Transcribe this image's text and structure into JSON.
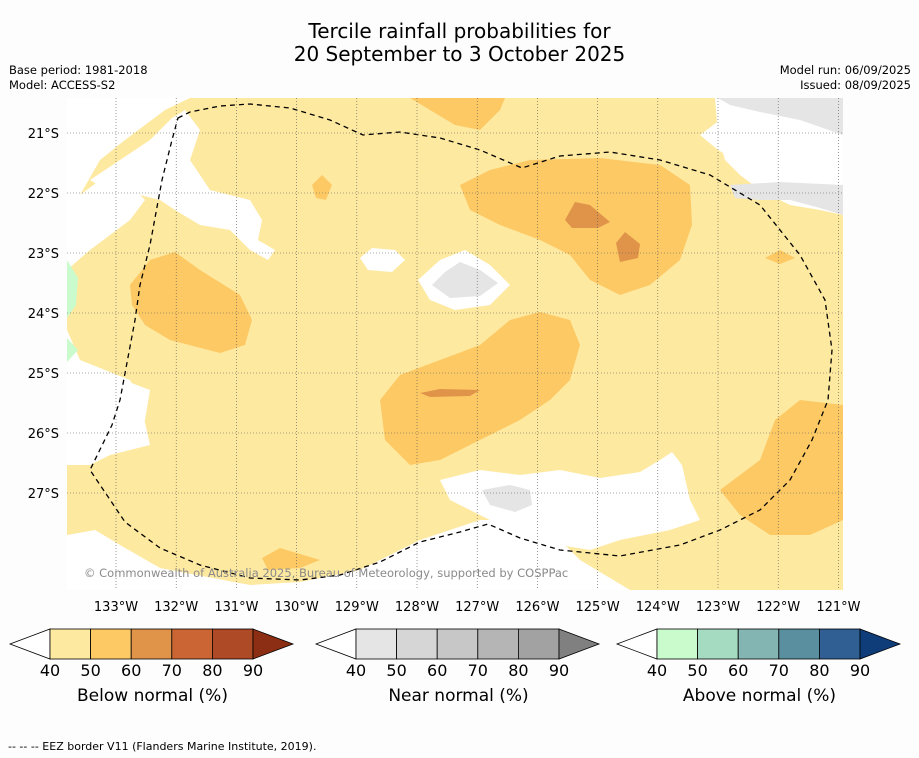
{
  "header": {
    "title_line1": "Tercile rainfall probabilities for",
    "title_line2": "20 September to 3 October 2025",
    "base_period": "Base period: 1981-2018",
    "model": "Model: ACCESS-S2",
    "model_run": "Model run: 06/09/2025",
    "issued": "Issued: 08/09/2025"
  },
  "map": {
    "lat_labels": [
      "21°S",
      "22°S",
      "23°S",
      "24°S",
      "25°S",
      "26°S",
      "27°S"
    ],
    "lon_labels": [
      "133°W",
      "132°W",
      "131°W",
      "130°W",
      "129°W",
      "128°W",
      "127°W",
      "126°W",
      "125°W",
      "124°W",
      "123°W",
      "122°W",
      "121°W"
    ],
    "copyright": "© Commonwealth of Australia 2025, Bureau of Meteorology, supported by COSPPac",
    "colors": {
      "below_50": "#fee9a0",
      "below_60": "#fdc965",
      "below_70": "#e09449",
      "near_50": "#e5e5e5",
      "above_50": "#c9fbcc"
    }
  },
  "colorbars": [
    {
      "id": "below",
      "label": "Below normal (%)",
      "ticks": [
        "40",
        "50",
        "60",
        "70",
        "80",
        "90"
      ],
      "colors": [
        "#fee9a0",
        "#fdc965",
        "#e09449",
        "#cb6634",
        "#ae4a26",
        "#8b2e14"
      ]
    },
    {
      "id": "near",
      "label": "Near normal (%)",
      "ticks": [
        "40",
        "50",
        "60",
        "70",
        "80",
        "90"
      ],
      "colors": [
        "#e5e5e5",
        "#d6d6d6",
        "#c7c7c7",
        "#b5b5b5",
        "#a2a2a2",
        "#808080"
      ]
    },
    {
      "id": "above",
      "label": "Above normal (%)",
      "ticks": [
        "40",
        "50",
        "60",
        "70",
        "80",
        "90"
      ],
      "colors": [
        "#c9fbcc",
        "#a5dbc0",
        "#83b6b2",
        "#5a8f9f",
        "#305f94",
        "#0f3d7a"
      ]
    }
  ],
  "footer": "--  --  -- EEZ border V11 (Flanders Marine Institute, 2019)."
}
